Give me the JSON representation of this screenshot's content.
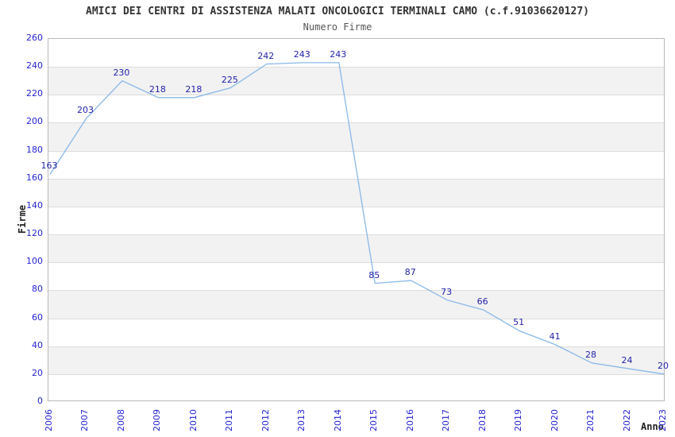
{
  "chart_data": {
    "type": "line",
    "title": "AMICI DEI CENTRI DI ASSISTENZA MALATI ONCOLOGICI TERMINALI CAMO (c.f.91036620127)",
    "subtitle": "Numero Firme",
    "xlabel": "Anno",
    "ylabel": "Firme",
    "categories": [
      "2006",
      "2007",
      "2008",
      "2009",
      "2010",
      "2011",
      "2012",
      "2013",
      "2014",
      "2015",
      "2016",
      "2017",
      "2018",
      "2019",
      "2020",
      "2021",
      "2022",
      "2023"
    ],
    "values": [
      163,
      203,
      230,
      218,
      218,
      225,
      242,
      243,
      243,
      85,
      87,
      73,
      66,
      51,
      41,
      28,
      24,
      20
    ],
    "ylim": [
      0,
      260
    ],
    "yticks": [
      0,
      20,
      40,
      60,
      80,
      100,
      120,
      140,
      160,
      180,
      200,
      220,
      240,
      260
    ],
    "grid": true,
    "legend": "none",
    "colors": {
      "line": "#88b8e8",
      "point_label": "#2222aa",
      "tick_label": "#2424d4",
      "band_white": "#ffffff",
      "band_gray": "#f2f2f2",
      "gridline": "#dcdcdc",
      "plot_border": "#b9b9b9",
      "title": "#333333",
      "subtitle": "#555555"
    }
  }
}
